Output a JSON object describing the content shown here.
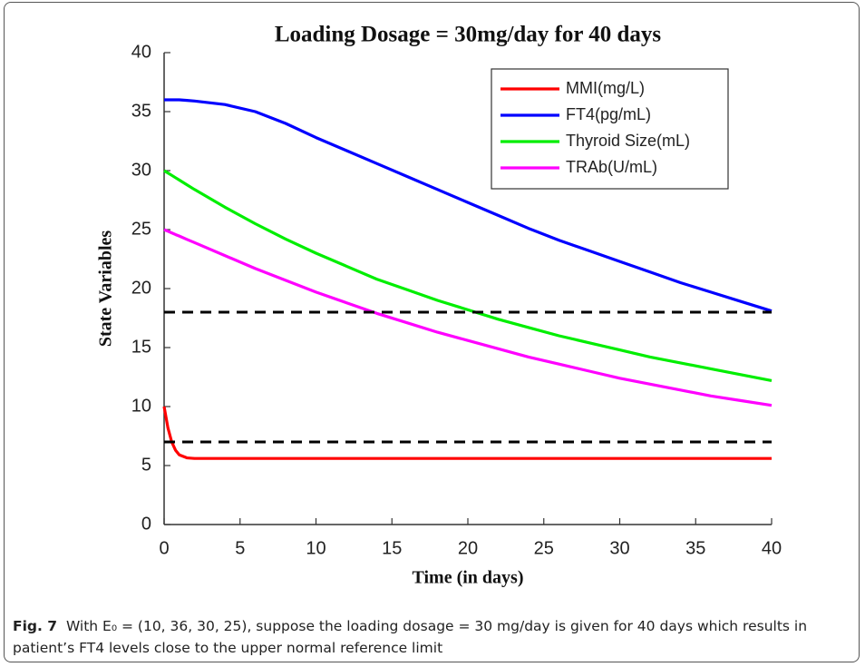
{
  "chart_data": {
    "type": "line",
    "title": "Loading Dosage = 30mg/day for 40 days",
    "xlabel": "Time (in days)",
    "ylabel": "State Variables",
    "x": [
      0,
      0.25,
      0.5,
      0.75,
      1,
      1.5,
      2,
      4,
      6,
      8,
      10,
      12,
      14,
      16,
      18,
      20,
      22,
      24,
      26,
      28,
      30,
      32,
      34,
      36,
      38,
      40
    ],
    "series": [
      {
        "name": "MMI(mg/L)",
        "color": "#ff0000",
        "values": [
          10,
          8.2,
          7.0,
          6.3,
          5.9,
          5.65,
          5.6,
          5.6,
          5.6,
          5.6,
          5.6,
          5.6,
          5.6,
          5.6,
          5.6,
          5.6,
          5.6,
          5.6,
          5.6,
          5.6,
          5.6,
          5.6,
          5.6,
          5.6,
          5.6,
          5.6
        ]
      },
      {
        "name": "FT4(pg/mL)",
        "color": "#0000ff",
        "values": [
          36,
          36,
          36,
          36,
          36,
          35.95,
          35.9,
          35.6,
          35.0,
          34.0,
          32.8,
          31.7,
          30.6,
          29.5,
          28.4,
          27.3,
          26.2,
          25.1,
          24.1,
          23.2,
          22.3,
          21.4,
          20.5,
          19.7,
          18.9,
          18.1
        ]
      },
      {
        "name": "Thyroid Size(mL)",
        "color": "#00ee00",
        "values": [
          30,
          29.8,
          29.6,
          29.4,
          29.2,
          28.8,
          28.4,
          26.9,
          25.5,
          24.2,
          23.0,
          21.9,
          20.8,
          19.9,
          19.0,
          18.2,
          17.4,
          16.7,
          16.0,
          15.4,
          14.8,
          14.2,
          13.7,
          13.2,
          12.7,
          12.2
        ]
      },
      {
        "name": "TRAb(U/mL)",
        "color": "#ff00ff",
        "values": [
          25,
          24.86,
          24.72,
          24.58,
          24.45,
          24.17,
          23.9,
          22.8,
          21.7,
          20.7,
          19.7,
          18.8,
          17.9,
          17.1,
          16.3,
          15.6,
          14.9,
          14.2,
          13.6,
          13.0,
          12.4,
          11.9,
          11.4,
          10.9,
          10.5,
          10.1
        ]
      }
    ],
    "hlines": [
      18,
      7
    ],
    "xlim": [
      0,
      40
    ],
    "xticks": [
      0,
      5,
      10,
      15,
      20,
      25,
      30,
      35,
      40
    ],
    "ylim": [
      0,
      40
    ],
    "yticks": [
      0,
      5,
      10,
      15,
      20,
      25,
      30,
      35,
      40
    ],
    "grid": false,
    "legend": "upper right"
  },
  "caption": {
    "label": "Fig. 7",
    "text": "With E₀ = (10, 36, 30, 25), suppose the loading dosage = 30 mg/day is given for 40 days which results in patient’s FT4 levels close to the upper normal reference limit"
  }
}
